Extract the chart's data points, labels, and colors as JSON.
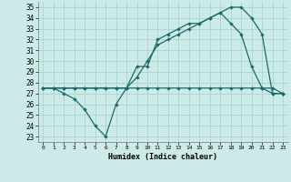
{
  "xlabel": "Humidex (Indice chaleur)",
  "background_color": "#cceae7",
  "grid_color": "#aad4d0",
  "line_color": "#1a6b6a",
  "xlim": [
    -0.5,
    23.5
  ],
  "ylim": [
    22.5,
    35.5
  ],
  "xticks": [
    0,
    1,
    2,
    3,
    4,
    5,
    6,
    7,
    8,
    9,
    10,
    11,
    12,
    13,
    14,
    15,
    16,
    17,
    18,
    19,
    20,
    21,
    22,
    23
  ],
  "yticks": [
    23,
    24,
    25,
    26,
    27,
    28,
    29,
    30,
    31,
    32,
    33,
    34,
    35
  ],
  "series1_x": [
    0,
    1,
    2,
    3,
    4,
    5,
    6,
    7,
    8,
    9,
    10,
    11,
    12,
    13,
    14,
    15,
    16,
    17,
    18,
    19,
    20,
    21,
    22,
    23
  ],
  "series1_y": [
    27.5,
    27.5,
    27.5,
    27.5,
    27.5,
    27.5,
    27.5,
    27.5,
    27.5,
    27.5,
    27.5,
    27.5,
    27.5,
    27.5,
    27.5,
    27.5,
    27.5,
    27.5,
    27.5,
    27.5,
    27.5,
    27.5,
    27.5,
    27.0
  ],
  "series2_x": [
    0,
    1,
    2,
    3,
    4,
    5,
    6,
    7,
    8,
    9,
    10,
    11,
    12,
    13,
    14,
    15,
    16,
    17,
    18,
    19,
    20,
    21,
    22,
    23
  ],
  "series2_y": [
    27.5,
    27.5,
    27.0,
    26.5,
    25.5,
    24.0,
    23.0,
    26.0,
    27.5,
    29.5,
    29.5,
    32.0,
    32.5,
    33.0,
    33.5,
    33.5,
    34.0,
    34.5,
    33.5,
    32.5,
    29.5,
    27.5,
    27.0,
    27.0
  ],
  "series3_x": [
    0,
    1,
    2,
    3,
    4,
    5,
    6,
    7,
    8,
    9,
    10,
    11,
    12,
    13,
    14,
    15,
    16,
    17,
    18,
    19,
    20,
    21,
    22,
    23
  ],
  "series3_y": [
    27.5,
    27.5,
    27.5,
    27.5,
    27.5,
    27.5,
    27.5,
    27.5,
    27.5,
    28.5,
    30.0,
    31.5,
    32.0,
    32.5,
    33.0,
    33.5,
    34.0,
    34.5,
    35.0,
    35.0,
    34.0,
    32.5,
    27.0,
    27.0
  ]
}
